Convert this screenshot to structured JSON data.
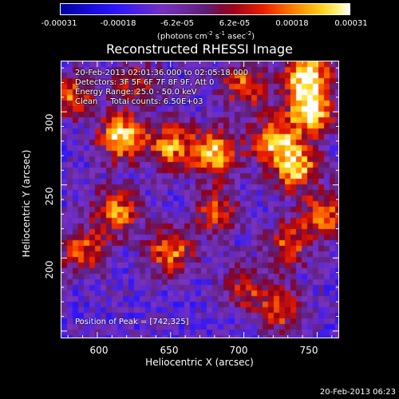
{
  "colorbar": {
    "ticks": [
      "-0.00031",
      "-0.00018",
      "-6.2e-05",
      "6.2e-05",
      "0.00018",
      "0.00031"
    ],
    "units_prefix": "(photons cm",
    "units_exp1": "-2",
    "units_mid1": " s",
    "units_exp2": "-1",
    "units_mid2": " asec",
    "units_exp3": "-2",
    "units_suffix": ")"
  },
  "annotation": {
    "line1": "20-Feb-2013 02:01:36.000 to 02:05:18.000",
    "line2": "Detectors: 3F 5F 6F 7F 8F 9F, Att 0",
    "line3": "Energy Range: 25.0 - 50.0 keV",
    "line4": "Clean     Total counts: 6.50E+03",
    "peak": "Position of Peak = [742,325]"
  },
  "timestamp": "20-Feb-2013 06:23",
  "chart_data": {
    "type": "heatmap",
    "title": "Reconstructed RHESSI Image",
    "xlabel": "Heliocentric X (arcsec)",
    "ylabel": "Heliocentric Y (arcsec)",
    "xlim": [
      575,
      765
    ],
    "ylim": [
      145,
      335
    ],
    "x_ticks": [
      600,
      650,
      700,
      750
    ],
    "y_ticks": [
      200,
      250,
      300
    ],
    "colormap": "blue-purple-red-yellow-white",
    "color_range": [
      -0.00031,
      0.00031
    ],
    "peak": [
      742,
      325
    ],
    "bright_sources": [
      {
        "x": 742,
        "y": 325,
        "value": 0.00031
      },
      {
        "x": 745,
        "y": 300,
        "value": 0.00029
      },
      {
        "x": 616,
        "y": 283,
        "value": 0.00028
      },
      {
        "x": 735,
        "y": 262,
        "value": 0.00026
      },
      {
        "x": 680,
        "y": 272,
        "value": 0.00024
      },
      {
        "x": 720,
        "y": 280,
        "value": 0.00022
      },
      {
        "x": 650,
        "y": 278,
        "value": 0.0002
      },
      {
        "x": 612,
        "y": 232,
        "value": 0.0002
      },
      {
        "x": 650,
        "y": 205,
        "value": 0.00019
      },
      {
        "x": 700,
        "y": 318,
        "value": 0.00017
      },
      {
        "x": 755,
        "y": 230,
        "value": 0.00016
      },
      {
        "x": 582,
        "y": 312,
        "value": 0.00015
      },
      {
        "x": 590,
        "y": 205,
        "value": 0.00014
      },
      {
        "x": 730,
        "y": 210,
        "value": 0.00014
      },
      {
        "x": 725,
        "y": 165,
        "value": 0.00013
      },
      {
        "x": 680,
        "y": 232,
        "value": 0.00012
      },
      {
        "x": 625,
        "y": 320,
        "value": 0.0001
      },
      {
        "x": 700,
        "y": 180,
        "value": 0.0001
      }
    ]
  }
}
